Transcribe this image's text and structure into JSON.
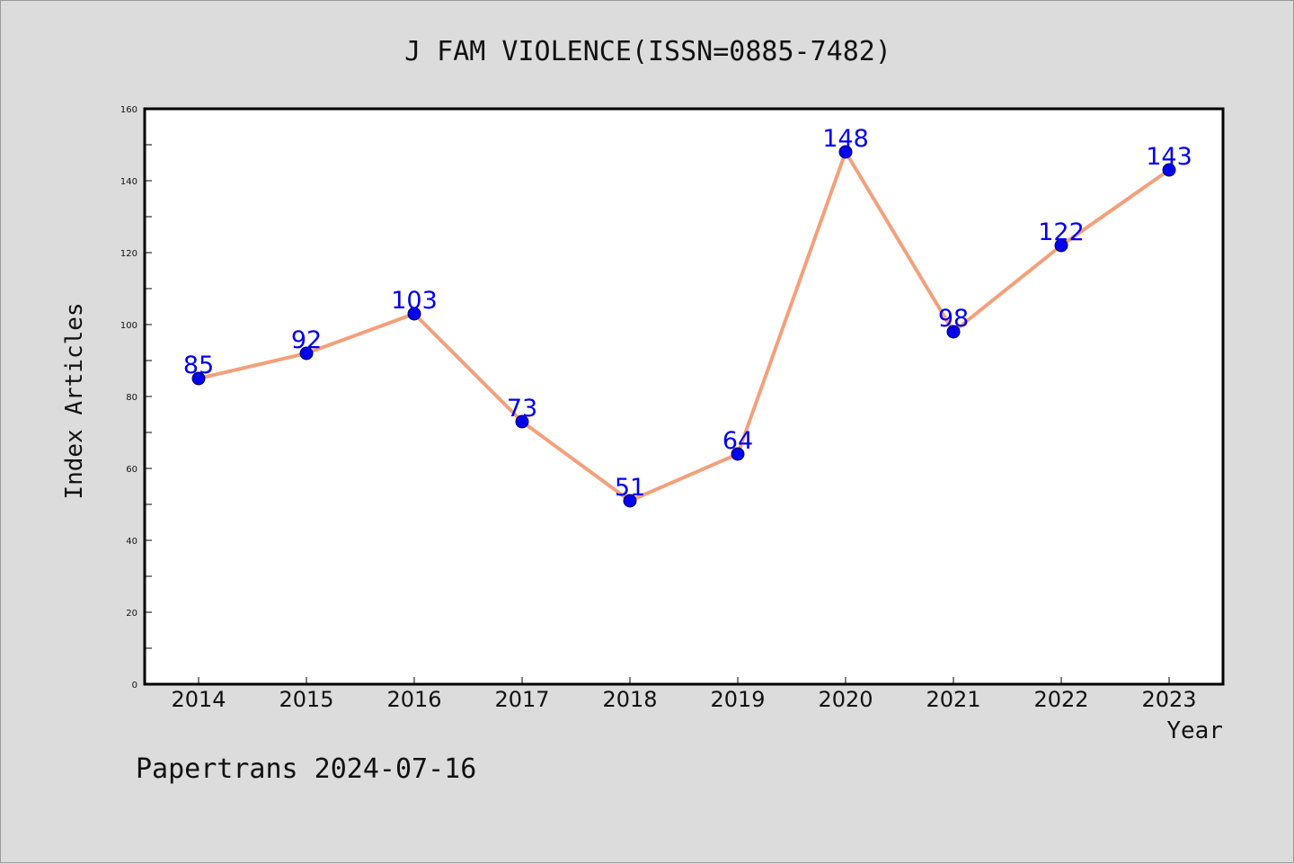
{
  "chart_data": {
    "type": "line",
    "title": "J FAM VIOLENCE(ISSN=0885-7482)",
    "xlabel": "Year",
    "ylabel": "Index Articles",
    "categories": [
      "2014",
      "2015",
      "2016",
      "2017",
      "2018",
      "2019",
      "2020",
      "2021",
      "2022",
      "2023"
    ],
    "values": [
      85,
      92,
      103,
      73,
      51,
      64,
      148,
      98,
      122,
      143
    ],
    "data_labels": [
      "85",
      "92",
      "103",
      "73",
      "51",
      "64",
      "148",
      "98",
      "122",
      "143"
    ],
    "ylim": [
      0,
      160
    ],
    "yticks": [
      0,
      20,
      40,
      60,
      80,
      100,
      120,
      140,
      160
    ],
    "grid": false,
    "line_color": "#f4a07a",
    "marker_color": "#0000ee",
    "label_color": "#0000ee",
    "footer": "Papertrans 2024-07-16"
  }
}
